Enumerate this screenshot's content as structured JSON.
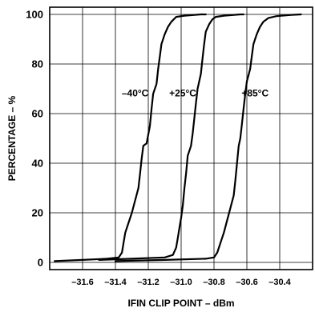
{
  "chart_data": {
    "type": "line",
    "title": "",
    "xlabel": "IFIN CLIP POINT – dBm",
    "ylabel": "PERCENTAGE – %",
    "xlim": [
      -31.8,
      -30.2
    ],
    "ylim": [
      0,
      100
    ],
    "x_ticks": [
      {
        "value": -31.6,
        "label": "–31.6"
      },
      {
        "value": -31.4,
        "label": "–31.4"
      },
      {
        "value": -31.2,
        "label": "–31.2"
      },
      {
        "value": -31.0,
        "label": "–31.0"
      },
      {
        "value": -30.8,
        "label": "–30.8"
      },
      {
        "value": -30.6,
        "label": "–30.6"
      },
      {
        "value": -30.4,
        "label": "–30.4"
      }
    ],
    "y_ticks": [
      {
        "value": 0,
        "label": "0"
      },
      {
        "value": 20,
        "label": "20"
      },
      {
        "value": 40,
        "label": "40"
      },
      {
        "value": 60,
        "label": "60"
      },
      {
        "value": 80,
        "label": "80"
      },
      {
        "value": 100,
        "label": "100"
      }
    ],
    "grid": true,
    "line_color": "#000000",
    "series": [
      {
        "name": "–40°C",
        "label_pos": [
          -31.28,
          67
        ],
        "points": [
          [
            -31.77,
            0.5
          ],
          [
            -31.6,
            1
          ],
          [
            -31.45,
            1.5
          ],
          [
            -31.38,
            2
          ],
          [
            -31.36,
            4
          ],
          [
            -31.35,
            8
          ],
          [
            -31.34,
            12
          ],
          [
            -31.32,
            16
          ],
          [
            -31.3,
            20
          ],
          [
            -31.28,
            25
          ],
          [
            -31.26,
            30
          ],
          [
            -31.25,
            36
          ],
          [
            -31.24,
            42
          ],
          [
            -31.23,
            47
          ],
          [
            -31.21,
            48
          ],
          [
            -31.19,
            55
          ],
          [
            -31.18,
            62
          ],
          [
            -31.17,
            68
          ],
          [
            -31.15,
            72
          ],
          [
            -31.14,
            78
          ],
          [
            -31.13,
            83
          ],
          [
            -31.12,
            88
          ],
          [
            -31.1,
            92
          ],
          [
            -31.08,
            95
          ],
          [
            -31.06,
            97
          ],
          [
            -31.03,
            99
          ],
          [
            -30.98,
            99.5
          ],
          [
            -30.88,
            100
          ],
          [
            -30.85,
            100
          ]
        ]
      },
      {
        "name": "+25°C",
        "label_pos": [
          -30.99,
          67
        ],
        "points": [
          [
            -31.5,
            1
          ],
          [
            -31.3,
            1.5
          ],
          [
            -31.1,
            2
          ],
          [
            -31.05,
            3
          ],
          [
            -31.03,
            6
          ],
          [
            -31.02,
            10
          ],
          [
            -31.01,
            14
          ],
          [
            -31.0,
            18
          ],
          [
            -30.99,
            23
          ],
          [
            -30.98,
            30
          ],
          [
            -30.97,
            36
          ],
          [
            -30.96,
            43
          ],
          [
            -30.94,
            47
          ],
          [
            -30.93,
            52
          ],
          [
            -30.92,
            58
          ],
          [
            -30.91,
            64
          ],
          [
            -30.9,
            70
          ],
          [
            -30.88,
            76
          ],
          [
            -30.87,
            82
          ],
          [
            -30.86,
            88
          ],
          [
            -30.85,
            93
          ],
          [
            -30.83,
            96
          ],
          [
            -30.81,
            98
          ],
          [
            -30.79,
            99
          ],
          [
            -30.74,
            99.5
          ],
          [
            -30.64,
            100
          ],
          [
            -30.62,
            100
          ]
        ]
      },
      {
        "name": "+85°C",
        "label_pos": [
          -30.55,
          67
        ],
        "points": [
          [
            -31.4,
            0.5
          ],
          [
            -31.1,
            1
          ],
          [
            -30.85,
            1.5
          ],
          [
            -30.8,
            2
          ],
          [
            -30.78,
            4
          ],
          [
            -30.76,
            8
          ],
          [
            -30.74,
            12
          ],
          [
            -30.72,
            17
          ],
          [
            -30.7,
            22
          ],
          [
            -30.68,
            27
          ],
          [
            -30.67,
            33
          ],
          [
            -30.66,
            40
          ],
          [
            -30.65,
            47
          ],
          [
            -30.64,
            50
          ],
          [
            -30.63,
            56
          ],
          [
            -30.62,
            62
          ],
          [
            -30.61,
            68
          ],
          [
            -30.6,
            73
          ],
          [
            -30.58,
            78
          ],
          [
            -30.57,
            83
          ],
          [
            -30.56,
            88
          ],
          [
            -30.54,
            92
          ],
          [
            -30.52,
            95
          ],
          [
            -30.5,
            97
          ],
          [
            -30.47,
            98.5
          ],
          [
            -30.42,
            99.3
          ],
          [
            -30.33,
            99.8
          ],
          [
            -30.27,
            100
          ]
        ]
      }
    ]
  }
}
